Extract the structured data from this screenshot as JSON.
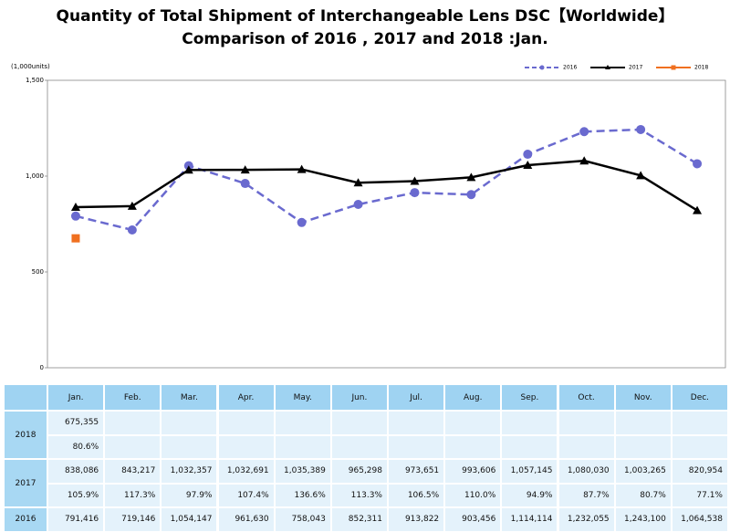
{
  "chart_data": {
    "type": "line",
    "title": "Quantity of Total Shipment of Interchangeable Lens DSC【Worldwide】",
    "subtitle": "Comparison of 2016 , 2017 and 2018 :Jan.",
    "y_label": "(1,000units)",
    "categories": [
      "Jan.",
      "Feb.",
      "Mar.",
      "Apr.",
      "May.",
      "Jun.",
      "Jul.",
      "Aug.",
      "Sep.",
      "Oct.",
      "Nov.",
      "Dec."
    ],
    "ylim": [
      0,
      1500
    ],
    "yticks": [
      0,
      500,
      {
        "value": 1000,
        "label": "1,000"
      },
      {
        "value": 1500,
        "label": "1,500"
      }
    ],
    "legend": "top-right",
    "series": [
      {
        "name": "2016",
        "color": "#6a6acf",
        "marker": "circle",
        "dashed": true,
        "values": [
          791.416,
          719.146,
          1054.147,
          961.63,
          758.043,
          852.311,
          913.822,
          903.456,
          1114.114,
          1232.055,
          1243.1,
          1064.538
        ]
      },
      {
        "name": "2017",
        "color": "#000000",
        "marker": "triangle",
        "dashed": false,
        "values": [
          838.086,
          843.217,
          1032.357,
          1032.691,
          1035.389,
          965.298,
          973.651,
          993.606,
          1057.145,
          1080.03,
          1003.265,
          820.954
        ]
      },
      {
        "name": "2018",
        "color": "#f07020",
        "marker": "square",
        "dashed": false,
        "values": [
          675.355,
          null,
          null,
          null,
          null,
          null,
          null,
          null,
          null,
          null,
          null,
          null
        ]
      }
    ]
  },
  "table": {
    "rows": [
      {
        "year": "2018",
        "lines": [
          [
            "675,355"
          ],
          [
            "80.6%"
          ]
        ]
      },
      {
        "year": "2017",
        "lines": [
          [
            "838,086",
            "843,217",
            "1,032,357",
            "1,032,691",
            "1,035,389",
            "965,298",
            "973,651",
            "993,606",
            "1,057,145",
            "1,080,030",
            "1,003,265",
            "820,954"
          ],
          [
            "105.9%",
            "117.3%",
            "97.9%",
            "107.4%",
            "136.6%",
            "113.3%",
            "106.5%",
            "110.0%",
            "94.9%",
            "87.7%",
            "80.7%",
            "77.1%"
          ]
        ]
      },
      {
        "year": "2016",
        "lines": [
          [
            "791,416",
            "719,146",
            "1,054,147",
            "961,630",
            "758,043",
            "852,311",
            "913,822",
            "903,456",
            "1,114,114",
            "1,232,055",
            "1,243,100",
            "1,064,538"
          ]
        ]
      }
    ]
  }
}
